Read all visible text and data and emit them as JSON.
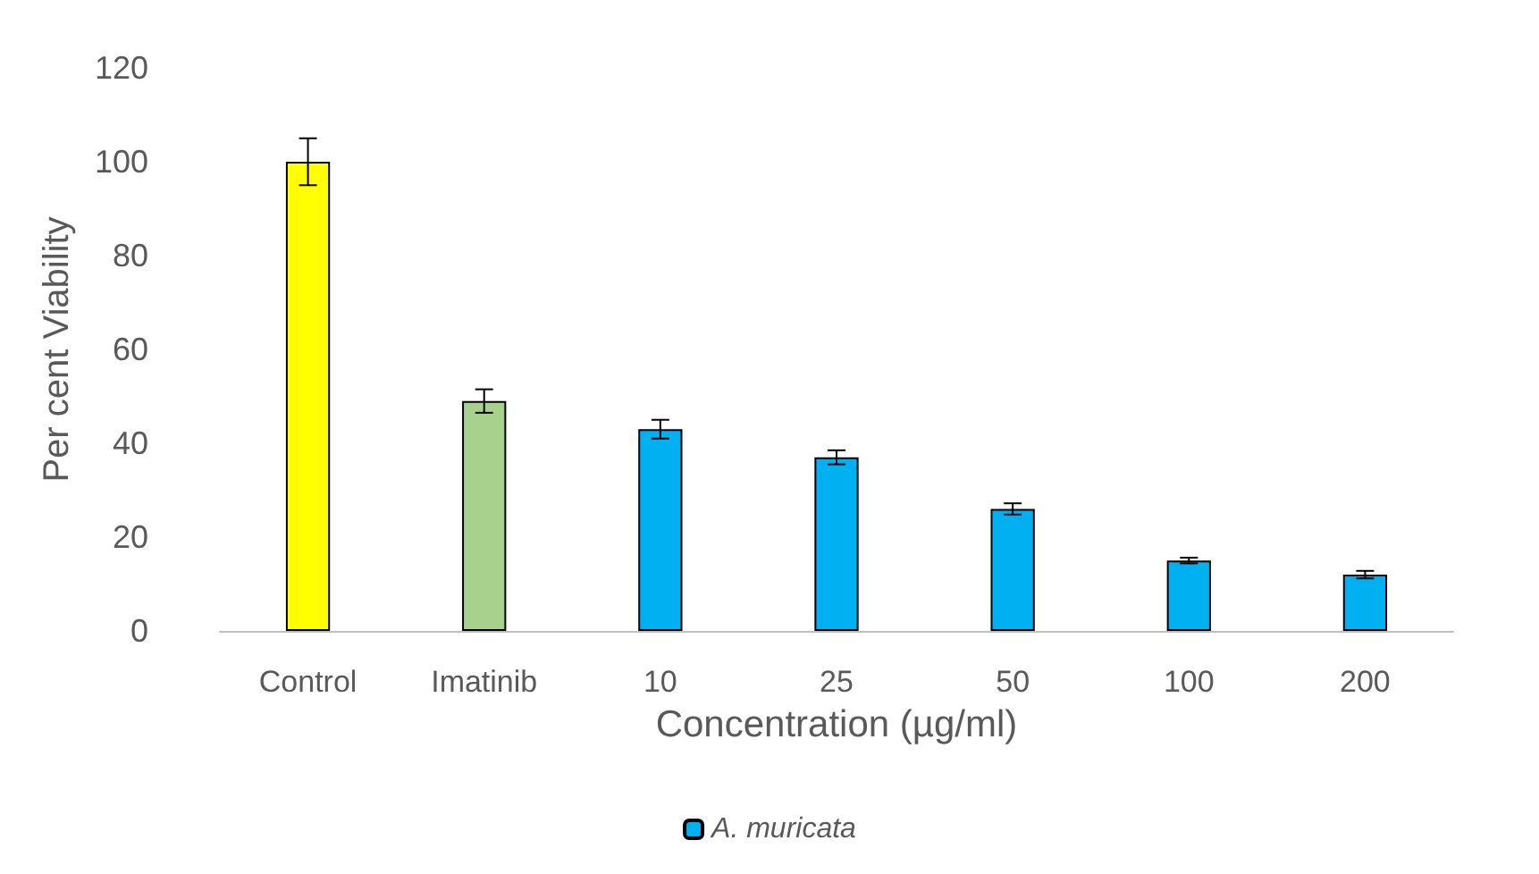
{
  "chart_data": {
    "type": "bar",
    "xlabel": "Concentration (µg/ml)",
    "ylabel": "Per cent Viability",
    "categories": [
      "Control",
      "Imatinib",
      "10",
      "25",
      "50",
      "100",
      "200"
    ],
    "series": [
      {
        "name": "A. muricata",
        "color": "#00b0f0",
        "colors": [
          "#ffff00",
          "#a9d18e",
          "#00b0f0",
          "#00b0f0",
          "#00b0f0",
          "#00b0f0",
          "#00b0f0"
        ],
        "values": [
          100,
          49,
          43,
          37,
          26,
          15,
          12
        ],
        "errors": [
          5,
          2.5,
          2,
          1.5,
          1.2,
          0.6,
          0.8
        ]
      }
    ],
    "ylim": [
      0,
      120
    ],
    "yticks": [
      0,
      20,
      40,
      60,
      80,
      100,
      120
    ],
    "grid": false,
    "legend": "bottom"
  }
}
